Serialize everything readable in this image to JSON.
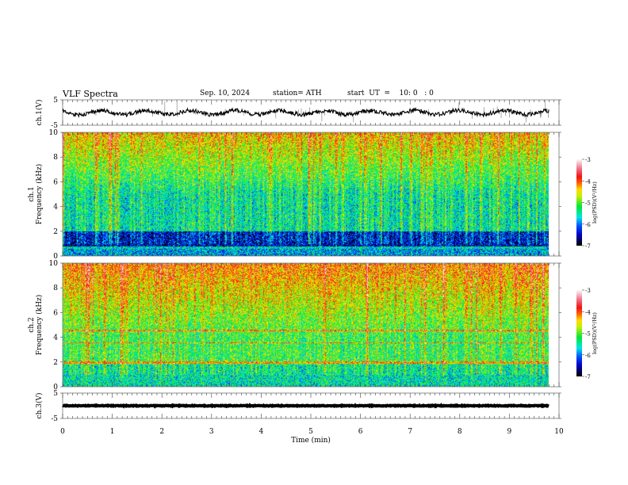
{
  "header": {
    "title": "VLF Spectra",
    "date": "Sep. 10, 2024",
    "station": "station= ATH",
    "start": "start  UT  =    10: 0   : 0"
  },
  "chart_data": {
    "type": "heatmap",
    "title": "VLF Spectra",
    "xlabel": "Time (min)",
    "xlim": [
      0,
      10
    ],
    "xticks": [
      "0",
      "1",
      "2",
      "3",
      "4",
      "5",
      "6",
      "7",
      "8",
      "9",
      "10"
    ],
    "data_end_min": 9.8,
    "panels": [
      {
        "id": "ch1-waveform",
        "type": "line",
        "ylabel": "ch.1(V)",
        "ylim": [
          -5,
          5
        ],
        "yticks": [
          "5",
          "-5"
        ],
        "baseline": 0,
        "spiky": true
      },
      {
        "id": "ch1-spectrogram",
        "type": "heatmap",
        "ylabel": "ch.1\nFrequency (kHz)",
        "ylim": [
          0,
          10
        ],
        "yticks": [
          "0",
          "2",
          "4",
          "6",
          "8",
          "10"
        ],
        "colorbar": {
          "label": "log(PSD)(V²/Hz)",
          "range": [
            -7,
            -3
          ],
          "ticks": [
            "-3",
            "-4",
            "-5",
            "-6",
            "-7"
          ]
        }
      },
      {
        "id": "ch2-spectrogram",
        "type": "heatmap",
        "ylabel": "ch.2\nFrequency (kHz)",
        "ylim": [
          0,
          10
        ],
        "yticks": [
          "0",
          "2",
          "4",
          "6",
          "8",
          "10"
        ],
        "colorbar": {
          "label": "log(PSD)(V²/Hz)",
          "range": [
            -7,
            -3
          ],
          "ticks": [
            "-3",
            "-4",
            "-5",
            "-6",
            "-7"
          ]
        }
      },
      {
        "id": "ch3-waveform",
        "type": "line",
        "ylabel": "ch.3(V)",
        "ylim": [
          -5,
          5
        ],
        "yticks": [
          "5",
          "-5"
        ],
        "baseline": 0,
        "spiky": false
      }
    ]
  }
}
